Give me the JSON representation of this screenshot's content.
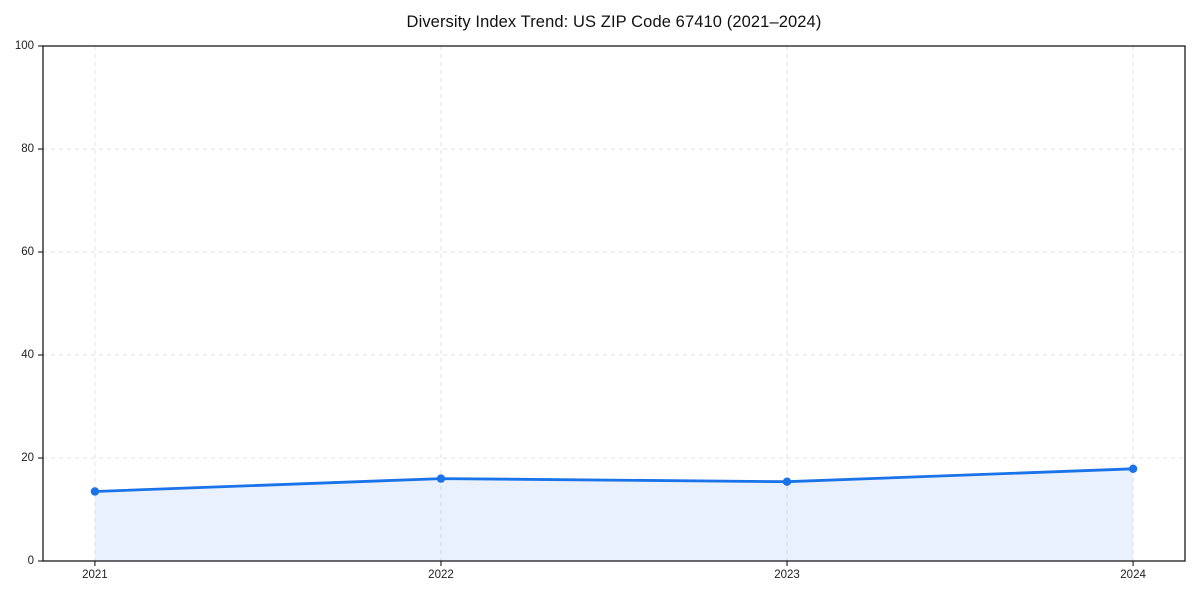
{
  "chart_data": {
    "type": "area",
    "title": "Diversity Index Trend: US ZIP Code 67410 (2021–2024)",
    "series_name": "Diversity Index",
    "categories": [
      "2021",
      "2022",
      "2023",
      "2024"
    ],
    "values": [
      13.5,
      16.0,
      15.4,
      17.9
    ],
    "xlabel": "",
    "ylabel": "",
    "ylim": [
      0,
      100
    ],
    "y_ticks": [
      0,
      20,
      40,
      60,
      80,
      100
    ],
    "grid": true,
    "legend": "none",
    "colors": {
      "line": "#1a73e8",
      "marker": "#1a73e8",
      "fill": "rgba(26,115,232,0.10)",
      "grid": "#e2e2e2",
      "spine": "#1a1a1a",
      "tick_label": "#1f1f1f",
      "title": "#111111",
      "background": "#ffffff"
    }
  }
}
